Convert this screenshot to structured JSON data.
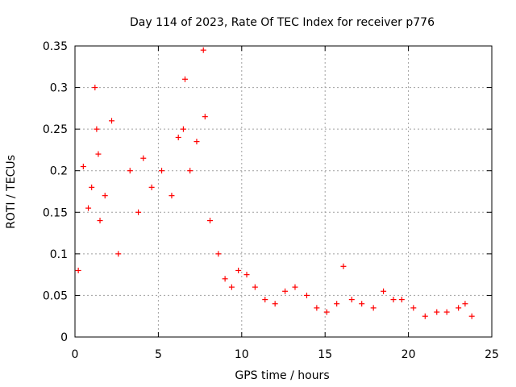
{
  "chart_data": {
    "type": "scatter",
    "title": "Day 114 of 2023, Rate Of TEC Index for receiver p776",
    "xlabel": "GPS time / hours",
    "ylabel": "ROTI / TECUs",
    "xlim": [
      0,
      25
    ],
    "ylim": [
      0,
      0.35
    ],
    "xticks": [
      0,
      5,
      10,
      15,
      20,
      25
    ],
    "xtick_labels": [
      "0",
      "5",
      "10",
      "15",
      "20",
      "25"
    ],
    "yticks": [
      0,
      0.05,
      0.1,
      0.15,
      0.2,
      0.25,
      0.3,
      0.35
    ],
    "ytick_labels": [
      "0",
      "0.05",
      "0.1",
      "0.15",
      "0.2",
      "0.25",
      "0.3",
      "0.35"
    ],
    "grid": true,
    "marker": "+",
    "color": "#ff0000",
    "series": [
      {
        "name": "ROTI",
        "x": [
          0.2,
          0.5,
          0.8,
          1.0,
          1.2,
          1.3,
          1.4,
          1.5,
          1.8,
          2.2,
          2.6,
          3.3,
          3.8,
          4.1,
          4.6,
          5.2,
          5.8,
          6.2,
          6.5,
          6.6,
          6.9,
          7.3,
          7.7,
          7.8,
          8.1,
          8.6,
          9.0,
          9.4,
          9.8,
          10.3,
          10.8,
          11.4,
          12.0,
          12.6,
          13.2,
          13.9,
          14.5,
          15.1,
          15.7,
          16.1,
          16.6,
          17.2,
          17.9,
          18.5,
          19.1,
          19.6,
          20.3,
          21.0,
          21.7,
          22.3,
          23.0,
          23.4,
          23.8
        ],
        "y": [
          0.08,
          0.205,
          0.155,
          0.18,
          0.3,
          0.25,
          0.22,
          0.14,
          0.17,
          0.26,
          0.1,
          0.2,
          0.15,
          0.215,
          0.18,
          0.2,
          0.17,
          0.24,
          0.25,
          0.31,
          0.2,
          0.235,
          0.345,
          0.265,
          0.14,
          0.1,
          0.07,
          0.06,
          0.08,
          0.075,
          0.06,
          0.045,
          0.04,
          0.055,
          0.06,
          0.05,
          0.035,
          0.03,
          0.04,
          0.085,
          0.045,
          0.04,
          0.035,
          0.055,
          0.045,
          0.045,
          0.035,
          0.025,
          0.03,
          0.03,
          0.035,
          0.04,
          0.025
        ]
      }
    ]
  }
}
